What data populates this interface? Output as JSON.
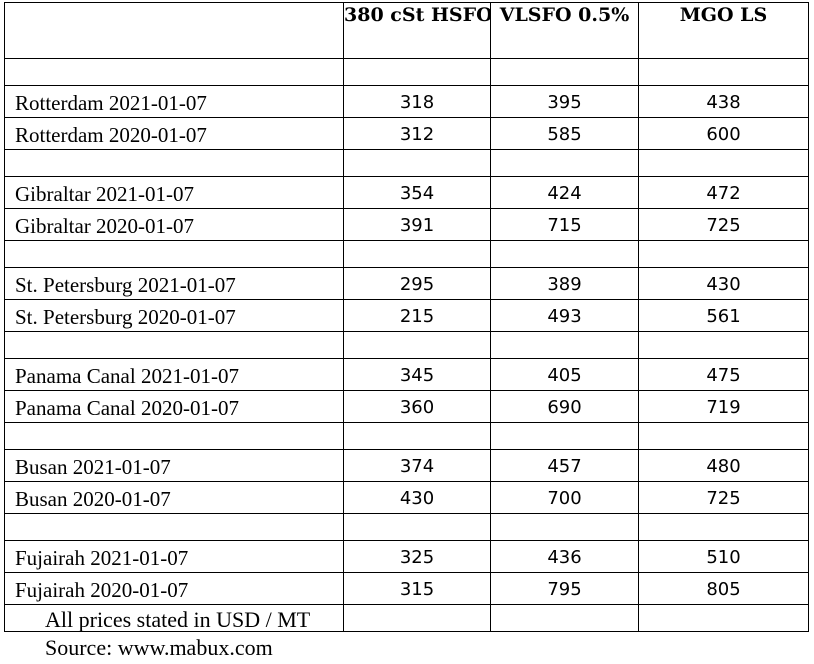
{
  "table": {
    "headers": [
      "",
      "380 cSt HSFO",
      "VLSFO 0.5%",
      "MGO LS"
    ],
    "groups": [
      {
        "rows": [
          {
            "port": "Rotterdam",
            "date": "2021-01-07",
            "values": [
              "318",
              "395",
              "438"
            ]
          },
          {
            "port": "Rotterdam",
            "date": "2020-01-07",
            "values": [
              "312",
              "585",
              "600"
            ]
          }
        ]
      },
      {
        "rows": [
          {
            "port": "Gibraltar",
            "date": "2021-01-07",
            "values": [
              "354",
              "424",
              "472"
            ]
          },
          {
            "port": "Gibraltar",
            "date": "2020-01-07",
            "values": [
              "391",
              "715",
              "725"
            ]
          }
        ]
      },
      {
        "rows": [
          {
            "port": "St. Petersburg",
            "date": "2021-01-07",
            "values": [
              "295",
              "389",
              "430"
            ]
          },
          {
            "port": "St. Petersburg",
            "date": "2020-01-07",
            "values": [
              "215",
              "493",
              "561"
            ]
          }
        ]
      },
      {
        "rows": [
          {
            "port": "Panama Canal",
            "date": "2021-01-07",
            "values": [
              "345",
              "405",
              "475"
            ]
          },
          {
            "port": "Panama Canal",
            "date": "2020-01-07",
            "values": [
              "360",
              "690",
              "719"
            ]
          }
        ]
      },
      {
        "rows": [
          {
            "port": "Busan",
            "date": "2021-01-07",
            "values": [
              "374",
              "457",
              "480"
            ]
          },
          {
            "port": "Busan",
            "date": "2020-01-07",
            "values": [
              "430",
              "700",
              "725"
            ]
          }
        ]
      },
      {
        "rows": [
          {
            "port": "Fujairah",
            "date": "2021-01-07",
            "values": [
              "325",
              "436",
              "510"
            ]
          },
          {
            "port": "Fujairah",
            "date": "2020-01-07",
            "values": [
              "315",
              "795",
              "805"
            ]
          }
        ]
      }
    ]
  },
  "footer": {
    "note": "All prices stated in USD / MT",
    "source": "Source: www.mabux.com"
  }
}
